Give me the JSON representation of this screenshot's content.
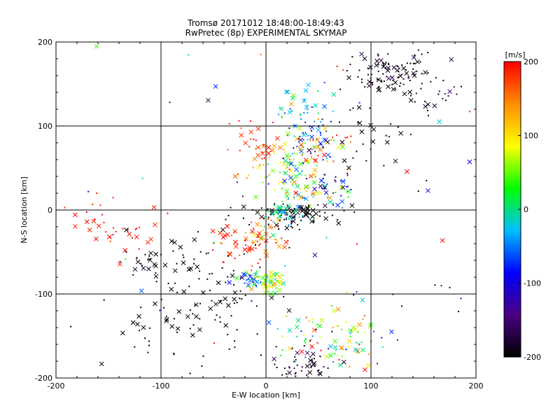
{
  "chart_data": {
    "type": "scatter",
    "title": "Tromsø 20171012 18:48:00-18:49:43",
    "subtitle": "RwPretec (8p) EXPERIMENTAL SKYMAP",
    "xlabel": "E-W location [km]",
    "ylabel": "N-S location [km]",
    "xlim": [
      -200,
      200
    ],
    "ylim": [
      -200,
      200
    ],
    "xticks": [
      "-200",
      "-100",
      "0",
      "100",
      "200"
    ],
    "yticks": [
      "-200",
      "-100",
      "0",
      "100",
      "200"
    ],
    "grid": true,
    "colorbar": {
      "label": "[m/s]",
      "range": [
        -200,
        200
      ],
      "ticks": [
        "200",
        "100",
        "0",
        "-100",
        "-200"
      ],
      "colormap": [
        "#000000",
        "#4b0082",
        "#0000ff",
        "#00bfff",
        "#00ff00",
        "#ffff00",
        "#ff8c00",
        "#ff0000"
      ]
    },
    "markers": {
      "dot": "+",
      "cross": "x"
    },
    "clusters": [
      {
        "x": 125,
        "y": 160,
        "sx": 22,
        "sy": 18,
        "n": 120,
        "v": -190,
        "vs": 15
      },
      {
        "x": 175,
        "y": 135,
        "sx": 10,
        "sy": 8,
        "n": 12,
        "v": -180,
        "vs": 20
      },
      {
        "x": 40,
        "y": 120,
        "sx": 10,
        "sy": 12,
        "n": 40,
        "v": -30,
        "vs": 35
      },
      {
        "x": 40,
        "y": 80,
        "sx": 12,
        "sy": 15,
        "n": 50,
        "v": -120,
        "vs": 60
      },
      {
        "x": 60,
        "y": 75,
        "sx": 15,
        "sy": 12,
        "n": 30,
        "v": 140,
        "vs": 60
      },
      {
        "x": 100,
        "y": 75,
        "sx": 25,
        "sy": 25,
        "n": 30,
        "v": -195,
        "vs": 10
      },
      {
        "x": 25,
        "y": 55,
        "sx": 15,
        "sy": 20,
        "n": 60,
        "v": 80,
        "vs": 60
      },
      {
        "x": 35,
        "y": 25,
        "sx": 15,
        "sy": 15,
        "n": 60,
        "v": 40,
        "vs": 80
      },
      {
        "x": 60,
        "y": 30,
        "sx": 12,
        "sy": 15,
        "n": 30,
        "v": -110,
        "vs": 50
      },
      {
        "x": -10,
        "y": 75,
        "sx": 12,
        "sy": 15,
        "n": 35,
        "v": 175,
        "vs": 25
      },
      {
        "x": 30,
        "y": -5,
        "sx": 25,
        "sy": 8,
        "n": 90,
        "v": -195,
        "vs": 10
      },
      {
        "x": 15,
        "y": -5,
        "sx": 10,
        "sy": 8,
        "n": 40,
        "v": 0,
        "vs": 30
      },
      {
        "x": 5,
        "y": -25,
        "sx": 10,
        "sy": 12,
        "n": 30,
        "v": 130,
        "vs": 50
      },
      {
        "x": -20,
        "y": -40,
        "sx": 15,
        "sy": 15,
        "n": 50,
        "v": 185,
        "vs": 20
      },
      {
        "x": 0,
        "y": -85,
        "sx": 10,
        "sy": 8,
        "n": 70,
        "v": 60,
        "vs": 40
      },
      {
        "x": -15,
        "y": -85,
        "sx": 8,
        "sy": 6,
        "n": 20,
        "v": -60,
        "vs": 20
      },
      {
        "x": -140,
        "y": -25,
        "sx": 20,
        "sy": 20,
        "n": 40,
        "v": 190,
        "vs": 15
      },
      {
        "x": -65,
        "y": -65,
        "sx": 40,
        "sy": 20,
        "n": 50,
        "v": -195,
        "vs": 10
      },
      {
        "x": -70,
        "y": -130,
        "sx": 40,
        "sy": 30,
        "n": 80,
        "v": -200,
        "vs": 5
      },
      {
        "x": -120,
        "y": -60,
        "sx": 12,
        "sy": 10,
        "n": 15,
        "v": -195,
        "vs": 10
      },
      {
        "x": 50,
        "y": -150,
        "sx": 20,
        "sy": 15,
        "n": 60,
        "v": 40,
        "vs": 90
      },
      {
        "x": 85,
        "y": -155,
        "sx": 15,
        "sy": 20,
        "n": 40,
        "v": 60,
        "vs": 70
      },
      {
        "x": 35,
        "y": -185,
        "sx": 15,
        "sy": 12,
        "n": 50,
        "v": -185,
        "vs": 15
      },
      {
        "x": 140,
        "y": -100,
        "sx": 30,
        "sy": 15,
        "n": 10,
        "v": -160,
        "vs": 60
      },
      {
        "x": 0,
        "y": 0,
        "sx": 120,
        "sy": 110,
        "n": 60,
        "v": 0,
        "vs": 150
      }
    ]
  }
}
